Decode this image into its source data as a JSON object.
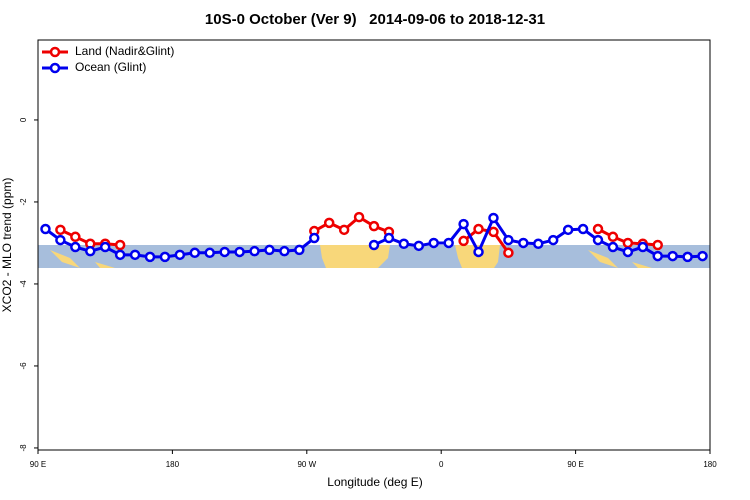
{
  "chart_data": {
    "type": "line",
    "title": "10S-0 October (Ver 9)   2014-09-06 to 2018-12-31",
    "xlabel": "Longitude (deg E)",
    "ylabel": "XCO2 - MLO trend (ppm)",
    "x": [
      95,
      105,
      115,
      125,
      135,
      145,
      155,
      165,
      175,
      185,
      195,
      205,
      215,
      225,
      235,
      245,
      255,
      265,
      275,
      285,
      295,
      305,
      315,
      325,
      335,
      345,
      355,
      365,
      375,
      385,
      395,
      405,
      415,
      425,
      435,
      445,
      455,
      465,
      475,
      485,
      495,
      505,
      515,
      525,
      535
    ],
    "series": [
      {
        "name": "Land (Nadir&Glint)",
        "color": "#ee0000",
        "values": [
          null,
          -2.68,
          -2.85,
          -3.02,
          -3.02,
          -3.05,
          null,
          null,
          null,
          null,
          null,
          null,
          null,
          null,
          null,
          null,
          null,
          null,
          -2.71,
          -2.51,
          -2.68,
          -2.37,
          -2.59,
          -2.73,
          null,
          null,
          null,
          null,
          -2.95,
          -2.66,
          -2.73,
          -3.24,
          null,
          null,
          null,
          null,
          null,
          -2.66,
          -2.85,
          -3.0,
          -3.02,
          -3.05,
          null,
          null,
          null
        ]
      },
      {
        "name": "Ocean (Glint)",
        "color": "#0000ee",
        "values": [
          -2.66,
          -2.93,
          -3.1,
          -3.2,
          -3.1,
          -3.29,
          -3.29,
          -3.34,
          -3.34,
          -3.29,
          -3.24,
          -3.24,
          -3.22,
          -3.22,
          -3.2,
          -3.17,
          -3.2,
          -3.17,
          -2.88,
          null,
          null,
          null,
          -3.05,
          -2.88,
          -3.02,
          -3.07,
          -3.0,
          -3.0,
          -2.54,
          -3.22,
          -2.39,
          -2.93,
          -3.0,
          -3.02,
          -2.93,
          -2.68,
          -2.66,
          -2.93,
          -3.1,
          -3.22,
          -3.1,
          -3.32,
          -3.32,
          -3.34,
          -3.32
        ]
      }
    ],
    "xlim": [
      90,
      540
    ],
    "xticks": [
      {
        "value": 90,
        "label": "90 E"
      },
      {
        "value": 180,
        "label": "180"
      },
      {
        "value": 270,
        "label": "90 W"
      },
      {
        "value": 360,
        "label": "0"
      },
      {
        "value": 450,
        "label": "90 E"
      },
      {
        "value": 540,
        "label": "180"
      }
    ],
    "ylim": [
      -8.05,
      1.95
    ],
    "yticks": [
      0,
      -2,
      -4,
      -6,
      -8
    ],
    "legend": "top-left"
  }
}
